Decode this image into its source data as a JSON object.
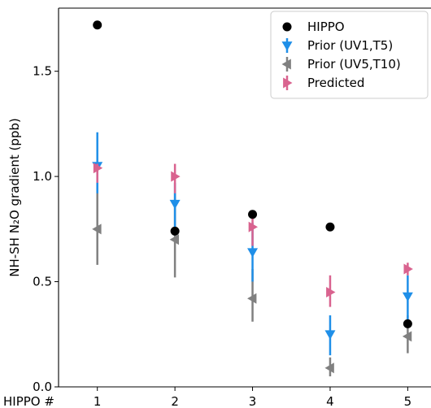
{
  "chart_data": {
    "type": "scatter",
    "title": "",
    "xlabel_prefix": "HIPPO #",
    "ylabel": "NH-SH N₂O gradient (ppb)",
    "ylim": [
      0.0,
      1.8
    ],
    "yticks": [
      0.0,
      0.5,
      1.0,
      1.5
    ],
    "ytick_labels": [
      "0.0",
      "0.5",
      "1.0",
      "1.5"
    ],
    "xlim": [
      0.5,
      5.3
    ],
    "categories": [
      "1",
      "2",
      "3",
      "4",
      "5"
    ],
    "x": [
      1,
      2,
      3,
      4,
      5
    ],
    "grid": false,
    "legend_position": "top-right",
    "series": [
      {
        "name": "HIPPO",
        "marker": "circle",
        "color": "#000000",
        "offset": 0,
        "values": [
          1.72,
          0.74,
          0.82,
          0.76,
          0.3
        ]
      },
      {
        "name": "Prior (UV1,T5)",
        "marker": "triangle-down",
        "color": "#1f8fe8",
        "offset": 0,
        "values": [
          1.05,
          0.87,
          0.64,
          0.25,
          0.43
        ],
        "err_low": [
          0.92,
          0.72,
          0.5,
          0.15,
          0.32
        ],
        "err_high": [
          1.21,
          0.97,
          0.78,
          0.34,
          0.53
        ]
      },
      {
        "name": "Prior (UV5,T10)",
        "marker": "triangle-left",
        "color": "#808080",
        "offset": 0,
        "values": [
          0.75,
          0.7,
          0.42,
          0.09,
          0.24
        ],
        "err_low": [
          0.58,
          0.52,
          0.31,
          0.05,
          0.16
        ],
        "err_high": [
          0.97,
          0.92,
          0.56,
          0.14,
          0.34
        ]
      },
      {
        "name": "Predicted",
        "marker": "triangle-right",
        "color": "#d9638f",
        "offset": 0,
        "values": [
          1.04,
          1.0,
          0.76,
          0.45,
          0.56
        ],
        "err_low": [
          0.97,
          0.92,
          0.67,
          0.38,
          0.53
        ],
        "err_high": [
          1.06,
          1.06,
          0.84,
          0.53,
          0.59
        ]
      }
    ]
  }
}
